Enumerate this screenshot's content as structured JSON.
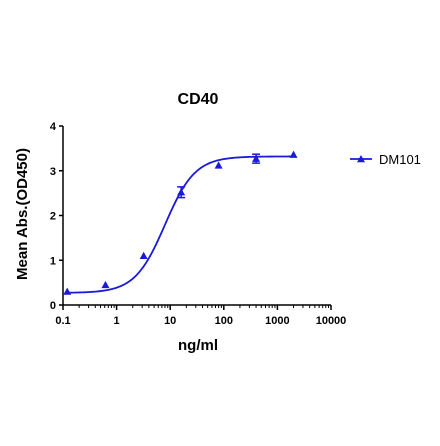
{
  "chart_data": {
    "type": "scatter",
    "title": "CD40",
    "xlabel": "ng/ml",
    "ylabel": "Mean Abs.(OD450)",
    "x_scale": "log",
    "xlim": [
      0.1,
      10000
    ],
    "ylim": [
      0,
      4
    ],
    "x_ticks": [
      0.1,
      1,
      10,
      100,
      1000,
      10000
    ],
    "x_tick_labels": [
      "0.1",
      "1",
      "10",
      "100",
      "1000",
      "10000"
    ],
    "y_ticks": [
      0,
      1,
      2,
      3,
      4
    ],
    "y_tick_labels": [
      "0",
      "1",
      "2",
      "3",
      "4"
    ],
    "legend_position": "right",
    "grid": false,
    "series": [
      {
        "name": "DM101",
        "color": "#1a1adb",
        "marker": "triangle",
        "x": [
          0.12,
          0.62,
          3.2,
          16,
          80,
          400,
          2000
        ],
        "y": [
          0.3,
          0.45,
          1.1,
          2.52,
          3.12,
          3.27,
          3.36
        ],
        "error": [
          0,
          0,
          0,
          0.12,
          0,
          0.1,
          0
        ],
        "fit": {
          "model": "4PL",
          "bottom": 0.27,
          "top": 3.32,
          "ec50": 8.0,
          "hill": 1.55
        }
      }
    ]
  }
}
